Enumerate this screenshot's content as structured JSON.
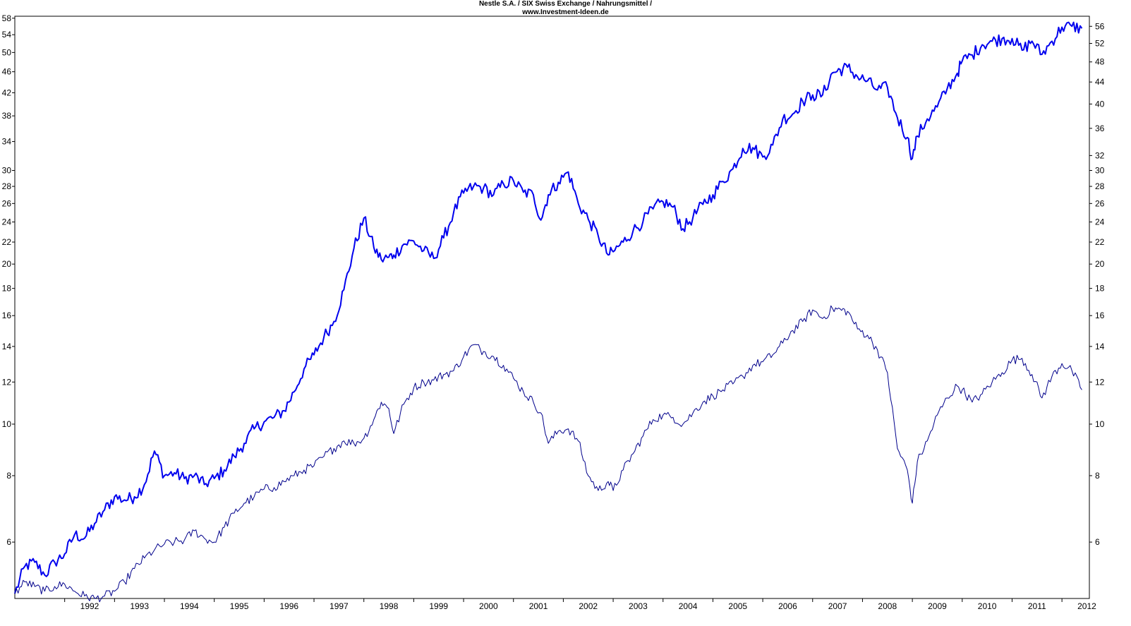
{
  "chart_data": {
    "type": "line",
    "title": "Nestle S.A. / SIX Swiss Exchange / Nahrungsmittel /",
    "subtitle": "www.Investment-Ideen.de",
    "xlabel": "",
    "ylabel": "",
    "log_scale": true,
    "grid": false,
    "xlim": [
      1991.0,
      2012.55
    ],
    "x_ticks": [
      "1992",
      "1993",
      "1994",
      "1995",
      "1996",
      "1997",
      "1998",
      "1999",
      "2000",
      "2001",
      "2002",
      "2003",
      "2004",
      "2005",
      "2006",
      "2007",
      "2008",
      "2009",
      "2010",
      "2011",
      "2012"
    ],
    "left_axis": {
      "ylim": [
        4.7,
        58.5
      ],
      "ticks": [
        "6",
        "8",
        "10",
        "12",
        "14",
        "16",
        "18",
        "20",
        "22",
        "24",
        "26",
        "28",
        "30",
        "34",
        "38",
        "42",
        "46",
        "50",
        "54",
        "58"
      ]
    },
    "right_axis": {
      "ylim": [
        4.7,
        58.5
      ],
      "ticks": [
        "6",
        "8",
        "10",
        "12",
        "14",
        "16",
        "18",
        "20",
        "22",
        "24",
        "26",
        "28",
        "30",
        "32",
        "36",
        "40",
        "44",
        "48",
        "52",
        "56"
      ]
    },
    "colors": {
      "series_thick": "#0000ee",
      "series_thin": "#00008b",
      "axis": "#000000",
      "background": "#ffffff"
    },
    "series": [
      {
        "axis": "left",
        "style": "thick",
        "x": [
          1991.0,
          1991.2,
          1991.4,
          1991.6,
          1991.8,
          1992.0,
          1992.2,
          1992.4,
          1992.6,
          1992.8,
          1993.0,
          1993.2,
          1993.4,
          1993.6,
          1993.8,
          1994.0,
          1994.2,
          1994.4,
          1994.6,
          1994.8,
          1995.0,
          1995.2,
          1995.4,
          1995.6,
          1995.8,
          1996.0,
          1996.2,
          1996.4,
          1996.6,
          1996.8,
          1997.0,
          1997.2,
          1997.4,
          1997.6,
          1997.8,
          1998.0,
          1998.2,
          1998.35,
          1998.5,
          1998.6,
          1998.8,
          1999.0,
          1999.2,
          1999.4,
          1999.6,
          1999.8,
          2000.0,
          2000.2,
          2000.4,
          2000.6,
          2000.8,
          2001.0,
          2001.2,
          2001.4,
          2001.55,
          2001.7,
          2001.9,
          2002.1,
          2002.3,
          2002.5,
          2002.7,
          2002.9,
          2003.0,
          2003.2,
          2003.4,
          2003.6,
          2003.8,
          2004.0,
          2004.2,
          2004.4,
          2004.6,
          2004.8,
          2005.0,
          2005.2,
          2005.4,
          2005.6,
          2005.8,
          2006.0,
          2006.2,
          2006.4,
          2006.6,
          2006.8,
          2007.0,
          2007.2,
          2007.4,
          2007.7,
          2007.9,
          2008.1,
          2008.3,
          2008.5,
          2008.7,
          2008.9,
          2009.0,
          2009.1,
          2009.3,
          2009.5,
          2009.7,
          2009.9,
          2010.0,
          2010.2,
          2010.4,
          2010.6,
          2010.8,
          2011.0,
          2011.2,
          2011.4,
          2011.6,
          2011.8,
          2012.0,
          2012.2,
          2012.4
        ],
        "y": [
          4.8,
          5.4,
          5.5,
          5.2,
          5.5,
          5.7,
          6.2,
          6.1,
          6.5,
          6.9,
          7.3,
          7.2,
          7.3,
          7.7,
          8.9,
          8.0,
          8.1,
          7.9,
          8.0,
          7.7,
          7.9,
          8.2,
          8.7,
          9.2,
          9.8,
          10.1,
          10.3,
          10.6,
          11.5,
          12.7,
          13.5,
          14.6,
          15.6,
          17.9,
          21.4,
          24.4,
          21.5,
          20.4,
          20.6,
          20.8,
          21.8,
          22.1,
          21.2,
          20.5,
          22.4,
          25.0,
          27.2,
          28.0,
          27.8,
          27.0,
          28.3,
          28.7,
          27.3,
          27.0,
          24.2,
          27.0,
          28.5,
          29.8,
          26.0,
          24.3,
          22.6,
          20.8,
          21.1,
          22.0,
          23.1,
          24.1,
          25.4,
          26.2,
          25.6,
          23.3,
          24.5,
          25.9,
          27.0,
          28.6,
          30.2,
          33.0,
          33.1,
          31.8,
          33.5,
          37.5,
          38.3,
          40.5,
          41.6,
          41.6,
          45.8,
          46.9,
          45.0,
          44.2,
          42.5,
          43.0,
          37.7,
          34.6,
          31.6,
          34.8,
          37.5,
          39.5,
          42.8,
          45.7,
          48.2,
          49.5,
          51.7,
          52.5,
          53.1,
          53.1,
          50.5,
          52.5,
          49.6,
          52.5,
          55.8,
          56.0,
          55.5
        ]
      },
      {
        "axis": "left",
        "style": "thin",
        "x": [
          1991.0,
          1991.2,
          1991.4,
          1991.6,
          1991.8,
          1992.0,
          1992.2,
          1992.4,
          1992.6,
          1992.8,
          1993.0,
          1993.2,
          1993.4,
          1993.6,
          1993.8,
          1994.0,
          1994.2,
          1994.4,
          1994.6,
          1994.8,
          1995.0,
          1995.2,
          1995.4,
          1995.6,
          1995.8,
          1996.0,
          1996.2,
          1996.4,
          1996.6,
          1996.8,
          1997.0,
          1997.2,
          1997.4,
          1997.6,
          1997.8,
          1998.0,
          1998.2,
          1998.35,
          1998.5,
          1998.6,
          1998.8,
          1999.0,
          1999.2,
          1999.4,
          1999.6,
          1999.8,
          2000.0,
          2000.2,
          2000.4,
          2000.6,
          2000.8,
          2001.0,
          2001.2,
          2001.4,
          2001.55,
          2001.7,
          2001.9,
          2002.1,
          2002.3,
          2002.5,
          2002.7,
          2002.9,
          2003.0,
          2003.2,
          2003.4,
          2003.6,
          2003.8,
          2004.0,
          2004.2,
          2004.4,
          2004.6,
          2004.8,
          2005.0,
          2005.2,
          2005.4,
          2005.6,
          2005.8,
          2006.0,
          2006.2,
          2006.4,
          2006.6,
          2006.8,
          2007.0,
          2007.2,
          2007.4,
          2007.7,
          2007.9,
          2008.1,
          2008.3,
          2008.5,
          2008.7,
          2008.9,
          2009.0,
          2009.1,
          2009.3,
          2009.5,
          2009.7,
          2009.9,
          2010.0,
          2010.2,
          2010.4,
          2010.6,
          2010.8,
          2011.0,
          2011.2,
          2011.4,
          2011.6,
          2011.8,
          2012.0,
          2012.2,
          2012.4
        ],
        "y": [
          4.8,
          5.05,
          4.95,
          4.85,
          4.95,
          5.0,
          4.85,
          4.75,
          4.7,
          4.75,
          4.85,
          5.05,
          5.35,
          5.6,
          5.8,
          5.95,
          6.0,
          6.05,
          6.3,
          6.1,
          6.0,
          6.4,
          6.8,
          7.1,
          7.3,
          7.55,
          7.6,
          7.8,
          8.0,
          8.2,
          8.35,
          8.7,
          9.0,
          9.3,
          9.2,
          9.4,
          10.2,
          11.0,
          10.7,
          9.6,
          10.9,
          11.7,
          12.0,
          12.1,
          12.4,
          12.6,
          13.4,
          14.1,
          13.7,
          13.4,
          12.9,
          12.2,
          11.5,
          11.0,
          10.5,
          9.2,
          9.7,
          9.8,
          9.3,
          8.0,
          7.5,
          7.8,
          7.5,
          8.2,
          8.8,
          9.5,
          10.2,
          10.4,
          10.3,
          10.0,
          10.5,
          11.0,
          11.3,
          11.6,
          11.9,
          12.3,
          12.9,
          13.1,
          13.5,
          14.2,
          15.0,
          15.6,
          16.4,
          15.8,
          16.5,
          16.3,
          15.1,
          14.7,
          13.8,
          12.5,
          9.0,
          8.2,
          7.1,
          8.5,
          9.3,
          10.4,
          11.2,
          11.8,
          11.6,
          11.0,
          11.4,
          12.0,
          12.5,
          13.2,
          13.3,
          12.4,
          11.2,
          12.3,
          13.0,
          12.6,
          11.6
        ]
      }
    ]
  }
}
